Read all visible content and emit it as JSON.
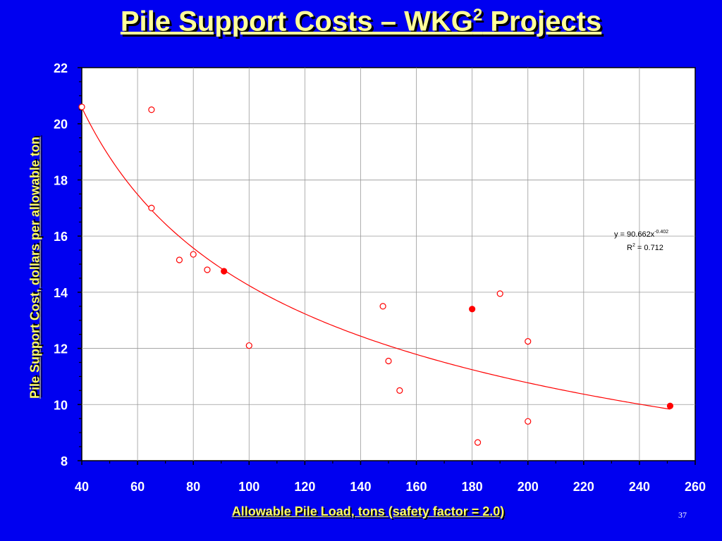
{
  "slide": {
    "title_main": "Pile Support Costs – WKG",
    "title_sup": "2",
    "title_end": " Projects",
    "page_number": "37"
  },
  "colors": {
    "background": "#0000f0",
    "plot_area": "#ffffff",
    "marker": "#ff0000",
    "axis_text": "#ffffff",
    "label_text": "#ffff66",
    "title_text": "#ffff99"
  },
  "chart_data": {
    "type": "scatter",
    "xlabel": "Allowable Pile Load, tons (safety factor = 2.0)",
    "ylabel": "Pile Support Cost, dollars per allowable ton",
    "xlim": [
      40,
      260
    ],
    "ylim": [
      8,
      22
    ],
    "x_ticks": [
      40,
      60,
      80,
      100,
      120,
      140,
      160,
      180,
      200,
      220,
      240,
      260
    ],
    "y_ticks": [
      8,
      10,
      12,
      14,
      16,
      18,
      20,
      22
    ],
    "grid": true,
    "series": [
      {
        "marker": "open-circle",
        "points": [
          {
            "x": 40,
            "y": 20.6
          },
          {
            "x": 65,
            "y": 20.5
          },
          {
            "x": 65,
            "y": 17.0
          },
          {
            "x": 75,
            "y": 15.15
          },
          {
            "x": 80,
            "y": 15.35
          },
          {
            "x": 85,
            "y": 14.8
          },
          {
            "x": 100,
            "y": 12.1
          },
          {
            "x": 148,
            "y": 13.5
          },
          {
            "x": 150,
            "y": 11.55
          },
          {
            "x": 154,
            "y": 10.5
          },
          {
            "x": 182,
            "y": 8.65
          },
          {
            "x": 190,
            "y": 13.95
          },
          {
            "x": 200,
            "y": 12.25
          },
          {
            "x": 200,
            "y": 9.4
          }
        ]
      },
      {
        "marker": "filled-circle",
        "points": [
          {
            "x": 91,
            "y": 14.75
          },
          {
            "x": 180,
            "y": 13.4
          },
          {
            "x": 251,
            "y": 9.95
          }
        ]
      }
    ],
    "trendline": {
      "type": "power",
      "coefficient": 90.662,
      "exponent": -0.402,
      "x_range": [
        40,
        251
      ],
      "equation_text": "y = 90.662x",
      "equation_exponent": "-0.402",
      "r2_prefix": "R",
      "r2_sup": "2",
      "r2_value": " = 0.712"
    }
  }
}
